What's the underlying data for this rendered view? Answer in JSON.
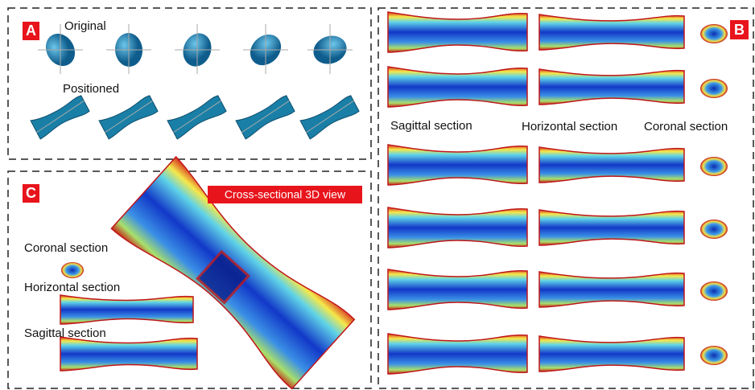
{
  "panel_a": {
    "label": "A",
    "original": "Original",
    "positioned": "Positioned"
  },
  "panel_b": {
    "label": "B",
    "sagittal": "Sagittal section",
    "horizontal": "Horizontal section",
    "coronal": "Coronal section"
  },
  "panel_c": {
    "label": "C",
    "title": "Cross-sectional 3D view",
    "coronal": "Coronal section",
    "horizontal": "Horizontal section",
    "sagittal": "Sagittal section"
  }
}
